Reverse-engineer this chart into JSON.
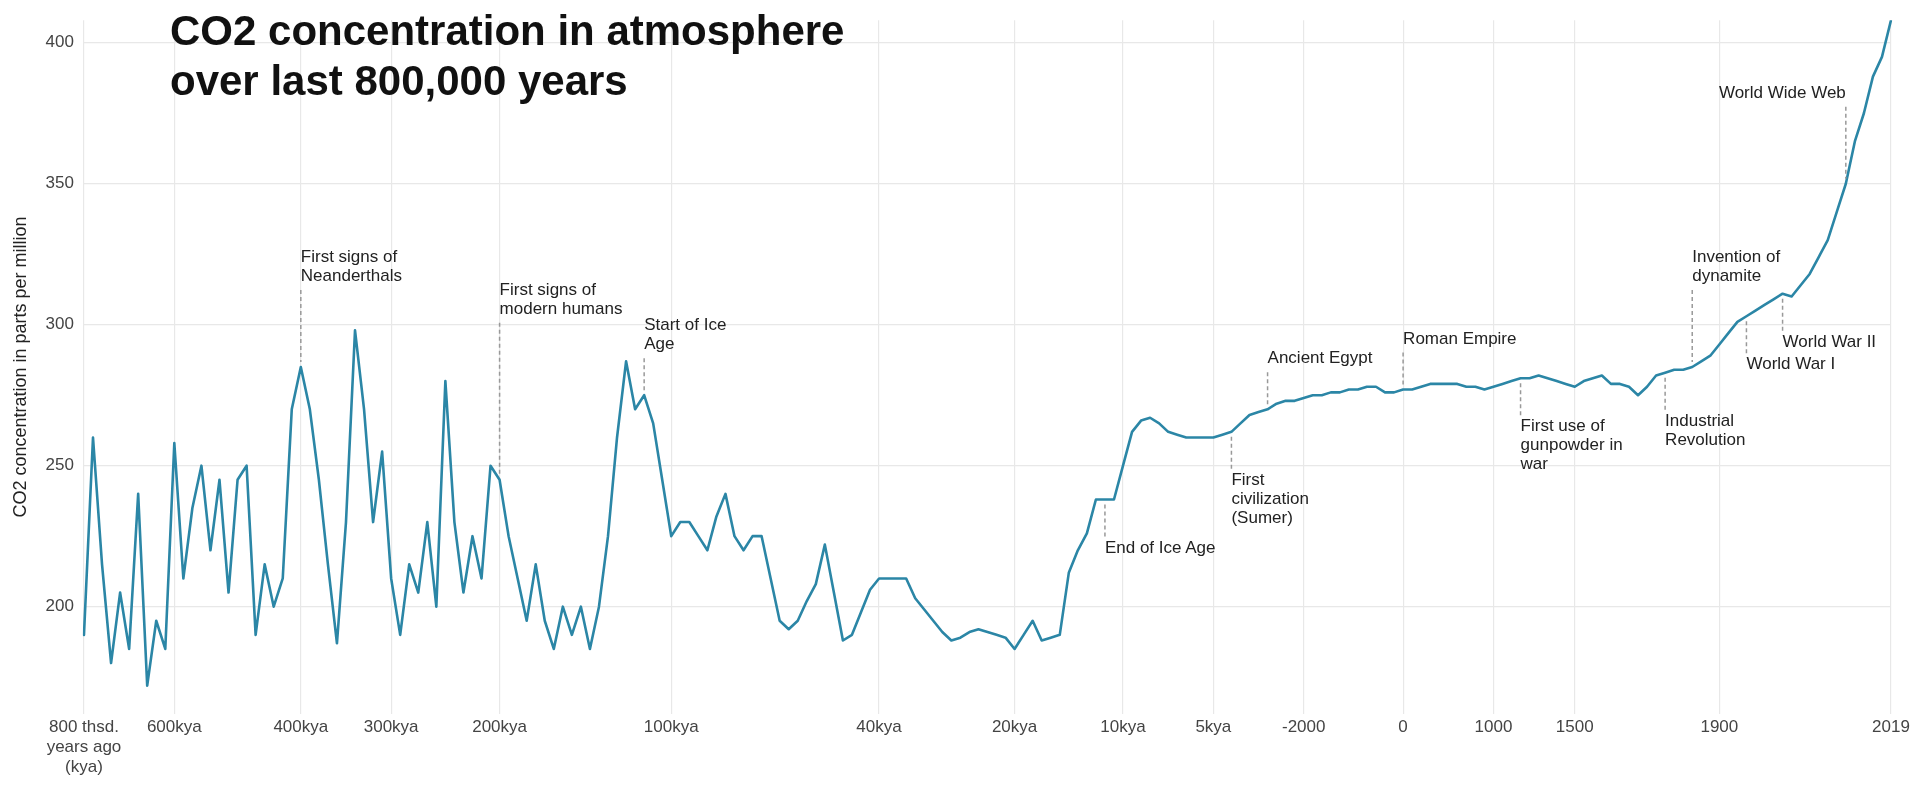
{
  "chart_data": {
    "type": "line",
    "title": "CO2 concentration in atmosphere over last 800,000 years",
    "ylabel": "CO2 concentration in parts per million",
    "ylim": [
      162,
      408
    ],
    "yticks": [
      200,
      250,
      300,
      350,
      400
    ],
    "grid": true,
    "legend": false,
    "categories": [
      "800 thsd. years ago (kya)",
      null,
      null,
      null,
      null,
      null,
      null,
      null,
      null,
      null,
      "600kya",
      null,
      null,
      null,
      null,
      null,
      null,
      null,
      null,
      null,
      null,
      null,
      null,
      null,
      "400kya",
      null,
      null,
      null,
      null,
      null,
      null,
      null,
      null,
      null,
      "300kya",
      null,
      null,
      null,
      null,
      null,
      null,
      null,
      null,
      null,
      null,
      null,
      "200kya",
      null,
      null,
      null,
      null,
      null,
      null,
      null,
      null,
      null,
      null,
      null,
      null,
      null,
      null,
      null,
      null,
      null,
      null,
      "100kya",
      null,
      null,
      null,
      null,
      null,
      null,
      null,
      null,
      null,
      null,
      null,
      null,
      null,
      null,
      null,
      null,
      null,
      null,
      null,
      null,
      null,
      null,
      "40kya",
      null,
      null,
      null,
      null,
      null,
      null,
      null,
      null,
      null,
      null,
      null,
      null,
      null,
      null,
      "20kya",
      null,
      null,
      null,
      null,
      null,
      null,
      null,
      null,
      null,
      null,
      null,
      "10kya",
      null,
      null,
      null,
      null,
      null,
      null,
      null,
      null,
      null,
      "5kya",
      null,
      null,
      null,
      null,
      null,
      null,
      null,
      null,
      null,
      "-2000",
      null,
      null,
      null,
      null,
      null,
      null,
      null,
      null,
      null,
      null,
      "0",
      null,
      null,
      null,
      null,
      null,
      null,
      null,
      null,
      null,
      "1000",
      null,
      null,
      null,
      null,
      null,
      null,
      null,
      null,
      "1500",
      null,
      null,
      null,
      null,
      null,
      null,
      null,
      null,
      null,
      null,
      null,
      null,
      null,
      null,
      null,
      "1900",
      null,
      null,
      null,
      null,
      null,
      null,
      null,
      null,
      null,
      null,
      null,
      null,
      null,
      null,
      null,
      null,
      null,
      null,
      "2019"
    ],
    "series": [
      {
        "color": "#2b86a6",
        "values": [
          190,
          260,
          215,
          180,
          205,
          185,
          240,
          172,
          195,
          185,
          258,
          210,
          235,
          250,
          220,
          245,
          205,
          245,
          250,
          190,
          215,
          200,
          210,
          270,
          285,
          270,
          245,
          215,
          187,
          230,
          298,
          270,
          230,
          255,
          210,
          190,
          215,
          205,
          230,
          200,
          280,
          230,
          205,
          225,
          210,
          250,
          245,
          225,
          210,
          195,
          215,
          195,
          185,
          200,
          190,
          200,
          185,
          200,
          225,
          260,
          287,
          270,
          275,
          265,
          245,
          225,
          230,
          230,
          225,
          220,
          232,
          240,
          225,
          220,
          225,
          225,
          210,
          195,
          192,
          195,
          202,
          208,
          222,
          205,
          188,
          190,
          198,
          206,
          210,
          210,
          210,
          210,
          203,
          199,
          195,
          191,
          188,
          189,
          191,
          192,
          191,
          190,
          189,
          185,
          190,
          195,
          188,
          189,
          190,
          212,
          220,
          226,
          238,
          238,
          238,
          250,
          262,
          266,
          267,
          265,
          262,
          261,
          260,
          260,
          260,
          260,
          261,
          262,
          265,
          268,
          269,
          270,
          272,
          273,
          273,
          274,
          275,
          275,
          276,
          276,
          277,
          277,
          278,
          278,
          276,
          276,
          277,
          277,
          278,
          279,
          279,
          279,
          279,
          278,
          278,
          277,
          278,
          279,
          280,
          281,
          281,
          282,
          281,
          280,
          279,
          278,
          280,
          281,
          282,
          279,
          279,
          278,
          275,
          278,
          282,
          283,
          284,
          284,
          285,
          287,
          289,
          293,
          297,
          301,
          303,
          305,
          307,
          309,
          311,
          310,
          314,
          318,
          324,
          330,
          340,
          350,
          365,
          375,
          388,
          395,
          408
        ],
        "value_labels": [
          null,
          null,
          null,
          null,
          null,
          null,
          null,
          null,
          null,
          null,
          null,
          null,
          null,
          null,
          null,
          null,
          null,
          null,
          null,
          null,
          null,
          null,
          null,
          null,
          "First signs of Neanderthals",
          null,
          null,
          null,
          null,
          null,
          null,
          null,
          null,
          null,
          null,
          null,
          null,
          null,
          null,
          null,
          null,
          null,
          null,
          null,
          null,
          null,
          "First signs of modern humans",
          null,
          null,
          null,
          null,
          null,
          null,
          null,
          null,
          null,
          null,
          null,
          null,
          null,
          null,
          null,
          "Start of Ice Age",
          null,
          null,
          null,
          null,
          null,
          null,
          null,
          null,
          null,
          null,
          null,
          null,
          null,
          null,
          null,
          null,
          null,
          null,
          null,
          null,
          null,
          null,
          null,
          null,
          null,
          null,
          null,
          null,
          null,
          null,
          null,
          null,
          null,
          null,
          null,
          null,
          null,
          null,
          null,
          null,
          null,
          null,
          null,
          null,
          null,
          null,
          null,
          null,
          null,
          null,
          "End of Ice Age",
          null,
          null,
          null,
          null,
          null,
          null,
          null,
          null,
          null,
          null,
          null,
          null,
          null,
          "First civilization (Sumer)",
          null,
          null,
          null,
          "Ancient Egypt",
          null,
          null,
          null,
          null,
          null,
          null,
          null,
          null,
          null,
          null,
          null,
          null,
          null,
          null,
          "Roman Empire",
          null,
          null,
          null,
          null,
          null,
          null,
          null,
          null,
          null,
          null,
          null,
          null,
          "First use of gunpowder in war",
          null,
          null,
          null,
          null,
          null,
          null,
          null,
          null,
          null,
          null,
          null,
          null,
          null,
          null,
          null,
          "Industrial Revolution",
          null,
          null,
          "Invention of dynamite",
          null,
          null,
          null,
          null,
          null,
          "World War I",
          null,
          null,
          null,
          "World War II",
          null,
          null,
          null,
          null,
          null,
          null,
          "World Wide Web",
          null,
          null,
          null,
          null,
          null
        ]
      }
    ]
  }
}
